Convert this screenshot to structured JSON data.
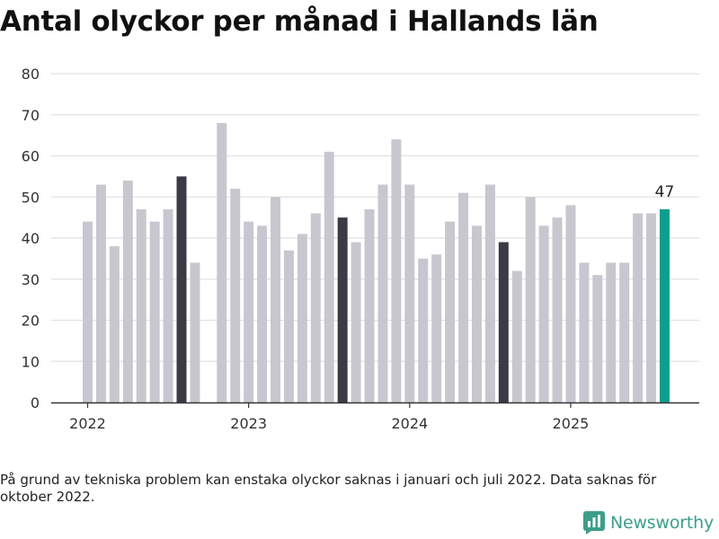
{
  "title": "Antal olyckor per månad i Hallands län",
  "footnote": "På grund av tekniska problem kan enstaka olyckor saknas i januari och juli 2022. Data saknas för oktober 2022.",
  "brand": {
    "name": "Newsworthy",
    "color": "#3d9e8c",
    "icon": "newsworthy-logo-icon"
  },
  "colors": {
    "bar": "#c8c7cf",
    "highlight_august": "#3c3b45",
    "latest": "#0e9e8e",
    "grid": "#e2e2e2",
    "axis": "#333333"
  },
  "chart_data": {
    "type": "bar",
    "title": "Antal olyckor per månad i Hallands län",
    "xlabel": "",
    "ylabel": "",
    "ylim": [
      0,
      80
    ],
    "yticks": [
      0,
      10,
      20,
      30,
      40,
      50,
      60,
      70,
      80
    ],
    "xticks": [
      "2022",
      "2023",
      "2024",
      "2025"
    ],
    "grid": true,
    "legend": "none",
    "annotation": {
      "month": "2025-08",
      "text": "47"
    },
    "months": [
      "2022-01",
      "2022-02",
      "2022-03",
      "2022-04",
      "2022-05",
      "2022-06",
      "2022-07",
      "2022-08",
      "2022-09",
      "2022-10",
      "2022-11",
      "2022-12",
      "2023-01",
      "2023-02",
      "2023-03",
      "2023-04",
      "2023-05",
      "2023-06",
      "2023-07",
      "2023-08",
      "2023-09",
      "2023-10",
      "2023-11",
      "2023-12",
      "2024-01",
      "2024-02",
      "2024-03",
      "2024-04",
      "2024-05",
      "2024-06",
      "2024-07",
      "2024-08",
      "2024-09",
      "2024-10",
      "2024-11",
      "2024-12",
      "2025-01",
      "2025-02",
      "2025-03",
      "2025-04",
      "2025-05",
      "2025-06",
      "2025-07",
      "2025-08"
    ],
    "values": [
      44,
      53,
      38,
      54,
      47,
      44,
      47,
      55,
      34,
      null,
      68,
      52,
      44,
      43,
      50,
      37,
      41,
      46,
      61,
      45,
      39,
      47,
      53,
      64,
      53,
      35,
      36,
      44,
      51,
      43,
      53,
      39,
      32,
      50,
      43,
      45,
      48,
      34,
      31,
      34,
      34,
      46,
      46,
      47
    ],
    "highlight_months": [
      "2022-08",
      "2023-08",
      "2024-08"
    ],
    "latest_month": "2025-08"
  }
}
